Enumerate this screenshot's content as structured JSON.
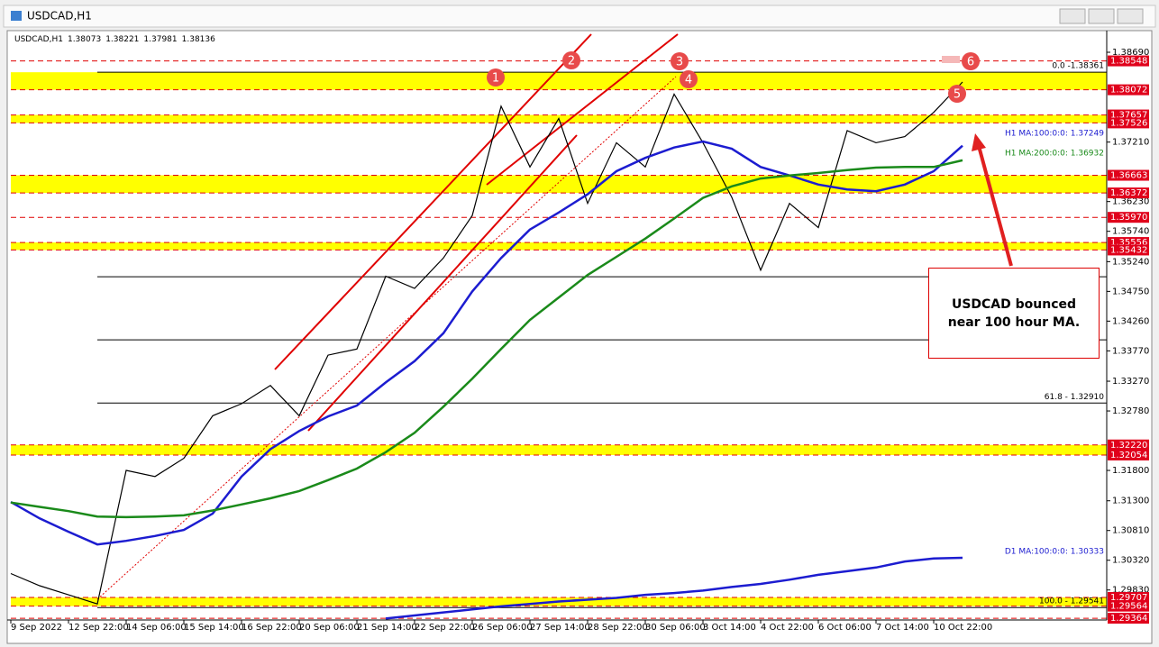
{
  "window_title": "USDCAD,H1",
  "chart_data": {
    "type": "line",
    "symbol": "USDCAD,H1",
    "ohlc": [
      1.38073,
      1.38221,
      1.37981,
      1.38136
    ],
    "categories": [
      "9 Sep 2022",
      null,
      "12 Sep 22:00",
      null,
      "14 Sep 06:00",
      null,
      "15 Sep 14:00",
      null,
      "16 Sep 22:00",
      null,
      "20 Sep 06:00",
      null,
      "21 Sep 14:00",
      null,
      "22 Sep 22:00",
      null,
      "26 Sep 06:00",
      null,
      "27 Sep 14:00",
      null,
      "28 Sep 22:00",
      null,
      "30 Sep 06:00",
      null,
      "3 Oct 14:00",
      null,
      "4 Oct 22:00",
      null,
      "6 Oct 06:00",
      null,
      "7 Oct 14:00",
      null,
      "10 Oct 22:00",
      null
    ],
    "series": [
      {
        "color": "#000000",
        "values": [
          1.301,
          1.299,
          1.2975,
          1.296,
          1.318,
          1.317,
          1.32,
          1.327,
          1.329,
          1.332,
          1.327,
          1.337,
          1.338,
          1.35,
          1.348,
          1.353,
          1.36,
          1.378,
          1.368,
          1.376,
          1.362,
          1.372,
          1.368,
          1.38,
          1.372,
          1.363,
          1.351,
          1.362,
          1.358,
          1.374,
          1.372,
          1.373,
          1.377,
          1.382
        ]
      },
      {
        "name": "H1 MA:100:0:0: 1.37249",
        "color": "#1c1cd0",
        "values": [
          1.3128,
          1.3101,
          1.3079,
          1.3058,
          1.3064,
          1.3072,
          1.3082,
          1.3109,
          1.317,
          1.3215,
          1.3245,
          1.3269,
          1.3287,
          1.3325,
          1.336,
          1.3406,
          1.3475,
          1.353,
          1.3577,
          1.3605,
          1.3635,
          1.3673,
          1.3695,
          1.3712,
          1.3722,
          1.371,
          1.368,
          1.3666,
          1.3651,
          1.3643,
          1.364,
          1.3651,
          1.3673,
          1.3715
        ]
      },
      {
        "name": "H1 MA:200:0:0: 1.36932",
        "color": "#1a8a1a",
        "values": [
          1.3127,
          1.312,
          1.3113,
          1.3104,
          1.3103,
          1.3104,
          1.3106,
          1.3114,
          1.3124,
          1.3134,
          1.3146,
          1.3164,
          1.3183,
          1.321,
          1.3242,
          1.3285,
          1.3331,
          1.338,
          1.3428,
          1.3465,
          1.3502,
          1.3532,
          1.3562,
          1.3595,
          1.3629,
          1.3648,
          1.3661,
          1.3666,
          1.367,
          1.3675,
          1.3679,
          1.368,
          1.368,
          1.3691
        ]
      },
      {
        "name": "D1 MA:100:0:0: 1.30333",
        "color": "#1c1cd0",
        "values": [
          null,
          null,
          null,
          null,
          null,
          null,
          null,
          null,
          null,
          null,
          null,
          null,
          null,
          1.2936,
          1.2941,
          1.2946,
          1.2951,
          1.2956,
          1.296,
          1.2964,
          1.2967,
          1.297,
          1.2975,
          1.2978,
          1.2982,
          1.2988,
          1.2993,
          1.3,
          1.3008,
          1.3014,
          1.302,
          1.303,
          1.3035,
          1.3036
        ]
      }
    ],
    "ylim": [
      1.29336,
      1.38987
    ],
    "yticks": [
      {
        "value": 1.3869,
        "label": "1.38690"
      },
      {
        "value": 1.3721,
        "label": "1.37210"
      },
      {
        "value": 1.3623,
        "label": "1.36230"
      },
      {
        "value": 1.3574,
        "label": "1.35740"
      },
      {
        "value": 1.3524,
        "label": "1.35240"
      },
      {
        "value": 1.3475,
        "label": "1.34750"
      },
      {
        "value": 1.3426,
        "label": "1.34260"
      },
      {
        "value": 1.3377,
        "label": "1.33770"
      },
      {
        "value": 1.3327,
        "label": "1.33270"
      },
      {
        "value": 1.3278,
        "label": "1.32780"
      },
      {
        "value": 1.318,
        "label": "1.31800"
      },
      {
        "value": 1.313,
        "label": "1.31300"
      },
      {
        "value": 1.3081,
        "label": "1.30810"
      },
      {
        "value": 1.3032,
        "label": "1.30320"
      },
      {
        "value": 1.2983,
        "label": "1.29830"
      }
    ],
    "price_labels": [
      1.38548,
      1.38072,
      1.37657,
      1.37526,
      1.36663,
      1.36372,
      {
        "value": 1.3597,
        "label": "1.35970"
      },
      1.35556,
      1.35432,
      {
        "value": 1.3222,
        "label": "1.32220"
      },
      1.32054,
      1.29707,
      1.29564,
      1.29364
    ],
    "zones": [
      [
        1.38072,
        1.38361
      ],
      [
        1.37526,
        1.37657
      ],
      [
        1.36372,
        1.36663
      ],
      [
        1.35432,
        1.35556
      ],
      [
        1.32054,
        1.3222
      ],
      [
        1.29564,
        1.29707
      ]
    ],
    "fib_levels": [
      {
        "value": 1.38361,
        "text": "0.0 -1.38361"
      },
      {
        "value": 1.34992
      },
      {
        "value": 1.33951
      },
      {
        "value": 1.3291,
        "text": "61.8 - 1.32910"
      },
      {
        "value": 1.29541,
        "text": "100.0 - 1.29541"
      }
    ],
    "markers": [
      "1",
      "2",
      "3",
      "4",
      "5",
      "6"
    ],
    "annotation": "USDCAD bounced near 100 hour MA."
  }
}
